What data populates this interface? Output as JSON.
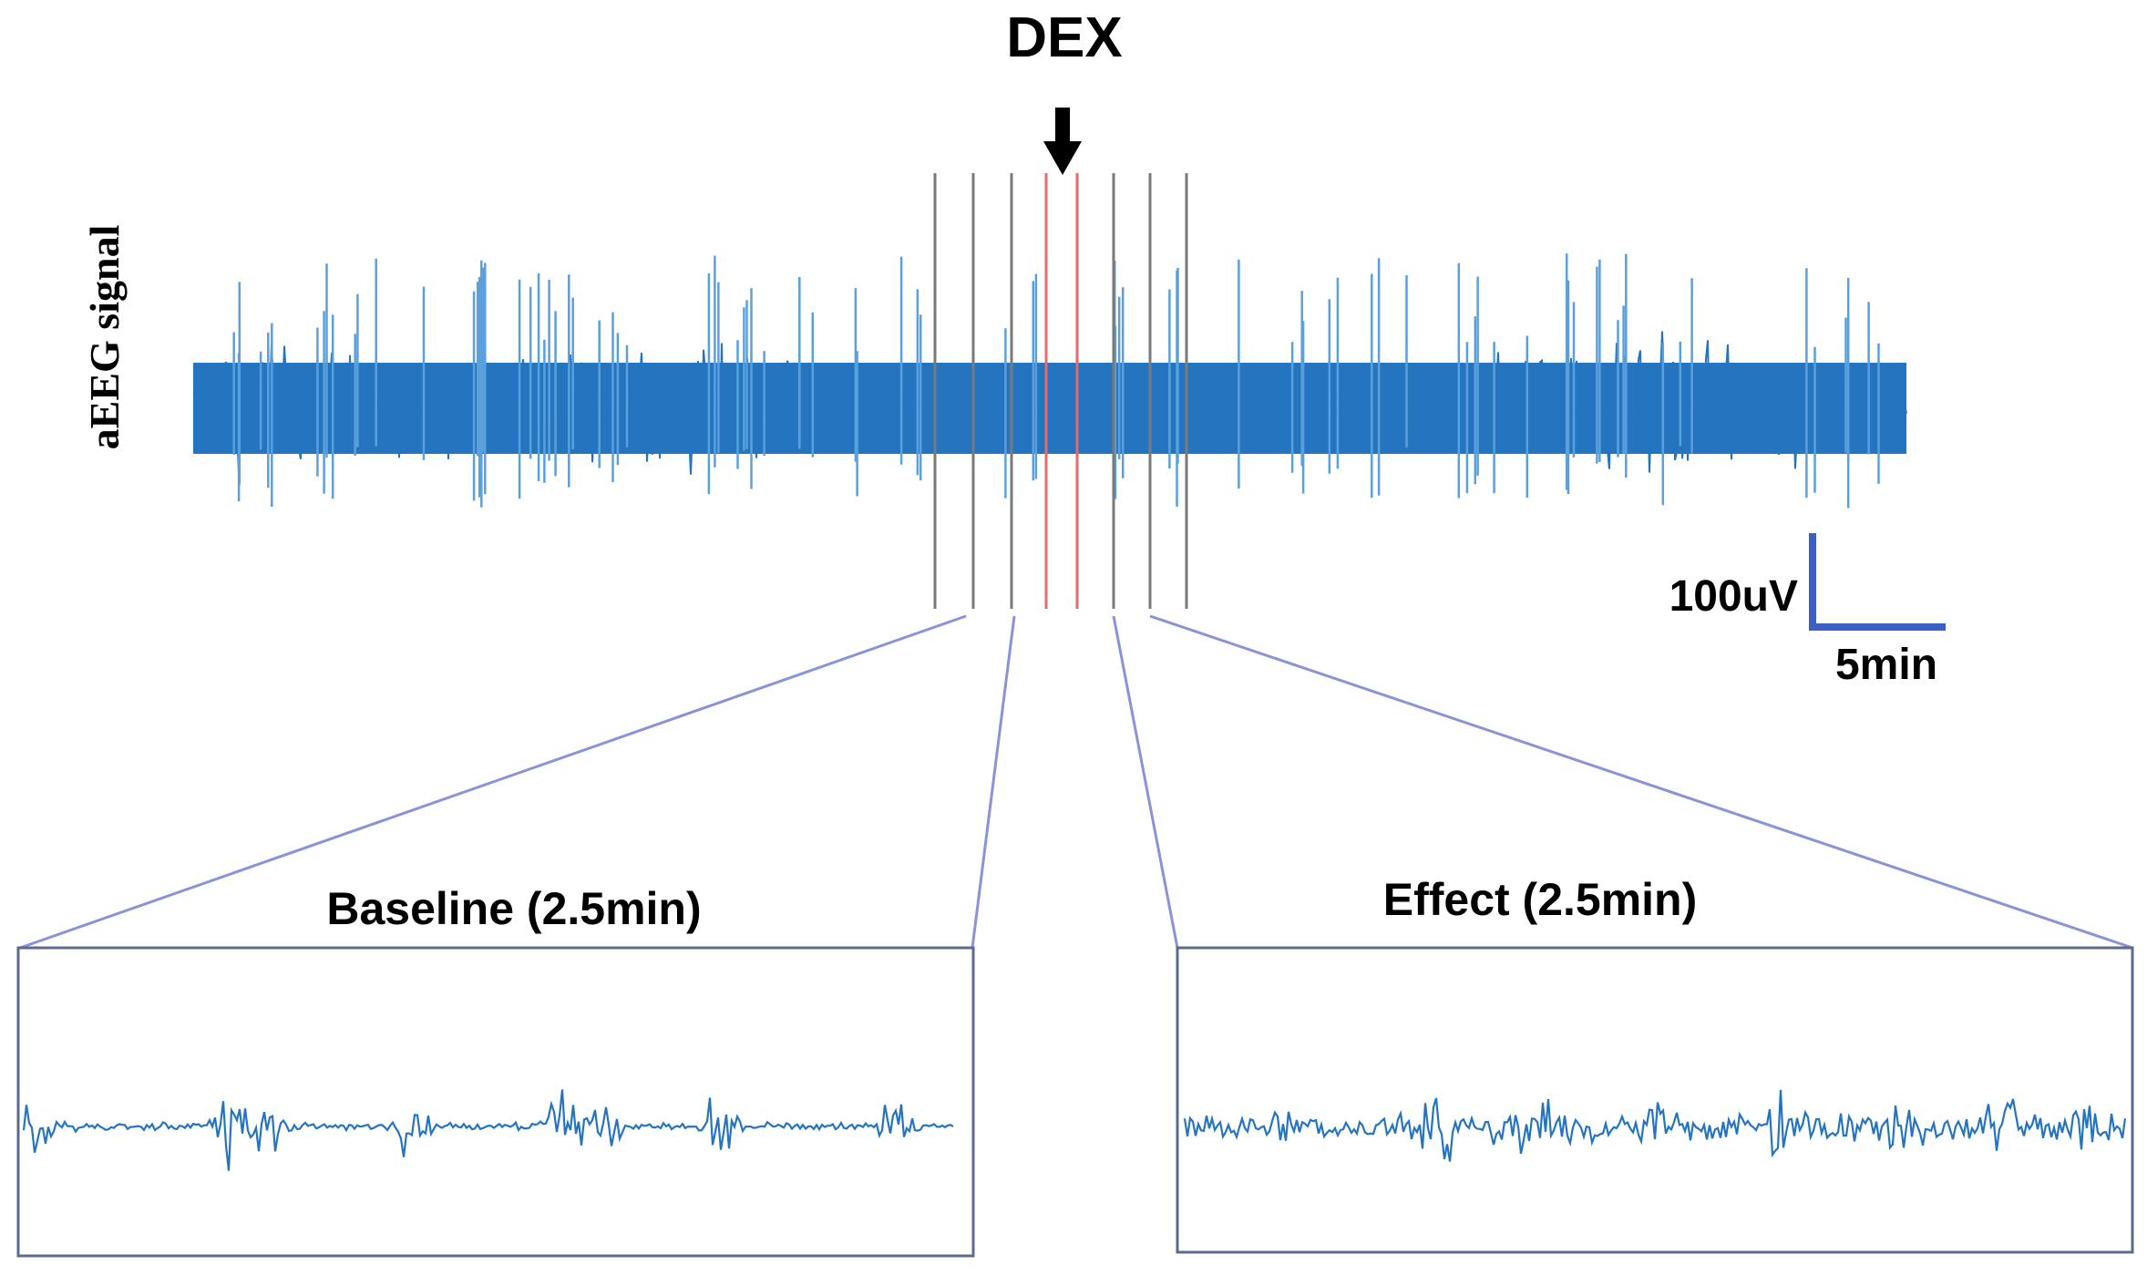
{
  "figure": {
    "drug_label": "DEX",
    "y_axis_label": "aEEG signal",
    "scale_bar": {
      "amplitude_label": "100uV",
      "time_label": "5min"
    },
    "panels": {
      "baseline_title": "Baseline (2.5min)",
      "effect_title": "Effect (2.5min)"
    }
  },
  "colors": {
    "signal": "#2474c0",
    "signal_light": "#5aa0dc",
    "marker_gray": "#7a7a7a",
    "marker_red": "#e86a6a",
    "zoom_lines": "#8a93d8",
    "scale_bar": "#3b5fc4",
    "text": "#000000",
    "box_border": "#5c6b8c"
  }
}
